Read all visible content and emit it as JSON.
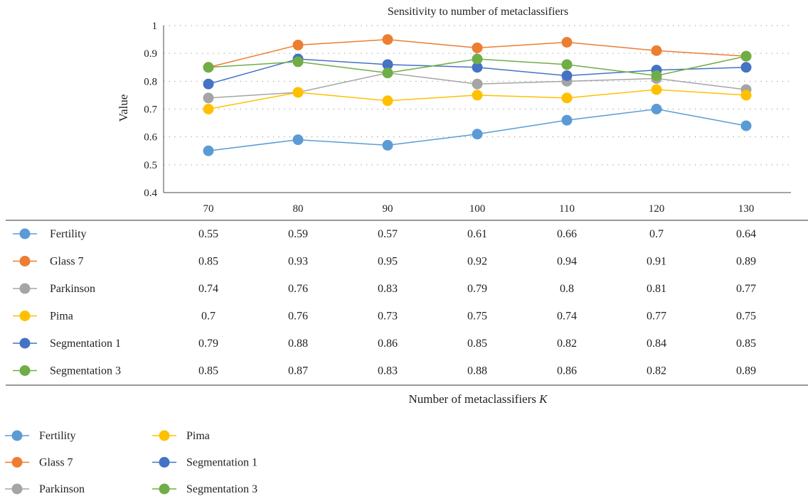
{
  "chart_data": {
    "type": "line",
    "title": "Sensitivity to number of metaclassifiers",
    "ylabel": "Value",
    "xlabel_text": "Number of metaclassifiers",
    "xlabel_var": "K",
    "ylim": [
      0.4,
      1.0
    ],
    "yticks": [
      "0.4",
      "0.5",
      "0.6",
      "0.7",
      "0.8",
      "0.9",
      "1"
    ],
    "categories": [
      "70",
      "80",
      "90",
      "100",
      "110",
      "120",
      "130"
    ],
    "grid": "horizontal dotted",
    "legend_position": "bottom-left",
    "series": [
      {
        "name": "Fertility",
        "color": "#5B9BD5",
        "values": [
          0.55,
          0.59,
          0.57,
          0.61,
          0.66,
          0.7,
          0.64
        ],
        "labels": [
          "0.55",
          "0.59",
          "0.57",
          "0.61",
          "0.66",
          "0.7",
          "0.64"
        ]
      },
      {
        "name": "Glass 7",
        "color": "#ED7D31",
        "values": [
          0.85,
          0.93,
          0.95,
          0.92,
          0.94,
          0.91,
          0.89
        ],
        "labels": [
          "0.85",
          "0.93",
          "0.95",
          "0.92",
          "0.94",
          "0.91",
          "0.89"
        ]
      },
      {
        "name": "Parkinson",
        "color": "#A5A5A5",
        "values": [
          0.74,
          0.76,
          0.83,
          0.79,
          0.8,
          0.81,
          0.77
        ],
        "labels": [
          "0.74",
          "0.76",
          "0.83",
          "0.79",
          "0.8",
          "0.81",
          "0.77"
        ]
      },
      {
        "name": "Pima",
        "color": "#FFC000",
        "values": [
          0.7,
          0.76,
          0.73,
          0.75,
          0.74,
          0.77,
          0.75
        ],
        "labels": [
          "0.7",
          "0.76",
          "0.73",
          "0.75",
          "0.74",
          "0.77",
          "0.75"
        ]
      },
      {
        "name": "Segmentation 1",
        "color": "#4472C4",
        "values": [
          0.79,
          0.88,
          0.86,
          0.85,
          0.82,
          0.84,
          0.85
        ],
        "labels": [
          "0.79",
          "0.88",
          "0.86",
          "0.85",
          "0.82",
          "0.84",
          "0.85"
        ]
      },
      {
        "name": "Segmentation 3",
        "color": "#70AD47",
        "values": [
          0.85,
          0.87,
          0.83,
          0.88,
          0.86,
          0.82,
          0.89
        ],
        "labels": [
          "0.85",
          "0.87",
          "0.83",
          "0.88",
          "0.86",
          "0.82",
          "0.89"
        ]
      }
    ]
  }
}
